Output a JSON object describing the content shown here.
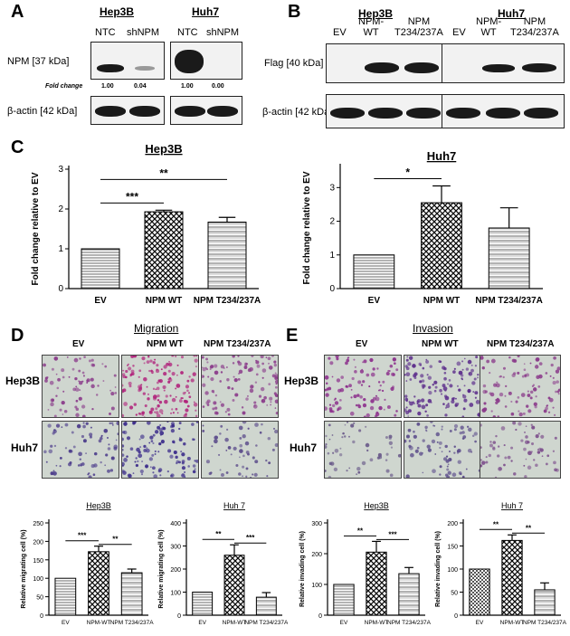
{
  "panels": {
    "a": "A",
    "b": "B",
    "c": "C",
    "d": "D",
    "e": "E"
  },
  "blotA": {
    "hep3b_title": "Hep3B",
    "huh7_title": "Huh7",
    "hep_lanes": [
      "NTC",
      "shNPM"
    ],
    "huh_lanes": [
      "NTC",
      "shNPM"
    ],
    "npm_label": "NPM [37 kDa]",
    "fold_label": "Fold change",
    "hep_folds": [
      "1.00",
      "0.04"
    ],
    "huh_folds": [
      "1.00",
      "0.00"
    ],
    "actin_label": "β-actin [42 kDa]"
  },
  "blotB": {
    "hep3b_title": "Hep3B",
    "huh7_title": "Huh7",
    "lanes": [
      "EV",
      "NPM-\nWT",
      "NPM\nT234/237A"
    ],
    "flag_label": "Flag [40 kDa]",
    "actin_label": "β-actin [42 kDa]"
  },
  "chartC": [
    {
      "title": "Hep3B",
      "ylabel": "Fold change relative to EV",
      "categories": [
        "EV",
        "NPM WT",
        "NPM T234/237A"
      ],
      "values": [
        1.0,
        1.93,
        1.67
      ],
      "errors": [
        0,
        0.04,
        0.12
      ],
      "ylim": [
        0,
        3
      ],
      "yticks": [
        "0",
        "1",
        "2",
        "3"
      ],
      "sig": [
        "***",
        "**"
      ]
    },
    {
      "title": "Huh7",
      "ylabel": "Fold change relative to EV",
      "categories": [
        "EV",
        "NPM WT",
        "NPM T234/237A"
      ],
      "values": [
        1.0,
        2.55,
        1.8
      ],
      "errors": [
        0,
        0.5,
        0.6
      ],
      "ylim": [
        0,
        3.6
      ],
      "yticks": [
        "0",
        "1",
        "2",
        "3"
      ],
      "sig": [
        "*"
      ]
    }
  ],
  "micrographs": {
    "migration_title": "Migration",
    "invasion_title": "Invasion",
    "cols": [
      "EV",
      "NPM WT",
      "NPM T234/237A"
    ],
    "rows": [
      "Hep3B",
      "Huh7"
    ]
  },
  "chartD": [
    {
      "title": "Hep3B",
      "ylabel": "Relative migrating cell (%)",
      "categories": [
        "EV",
        "NPM-WT",
        "NPM T234/237A"
      ],
      "values": [
        100,
        172,
        115
      ],
      "errors": [
        0,
        15,
        10
      ],
      "ylim": [
        0,
        250
      ],
      "yticks": [
        "0",
        "50",
        "100",
        "150",
        "200",
        "250"
      ],
      "sig": [
        "***",
        "**"
      ]
    },
    {
      "title": "Huh 7",
      "ylabel": "Relative migrating cell (%)",
      "categories": [
        "EV",
        "NPM-WT",
        "NPM T234/237A"
      ],
      "values": [
        100,
        260,
        78
      ],
      "errors": [
        0,
        45,
        20
      ],
      "ylim": [
        0,
        400
      ],
      "yticks": [
        "0",
        "100",
        "200",
        "300",
        "400"
      ],
      "sig": [
        "**",
        "***"
      ]
    },
    {
      "title": "Hep3B",
      "ylabel": "Relative invading cell (%)",
      "categories": [
        "EV",
        "NPM-WT",
        "NPM T234/237A"
      ],
      "values": [
        100,
        205,
        135
      ],
      "errors": [
        0,
        35,
        20
      ],
      "ylim": [
        0,
        300
      ],
      "yticks": [
        "0",
        "100",
        "200",
        "300"
      ],
      "sig": [
        "**",
        "***"
      ]
    },
    {
      "title": "Huh 7",
      "ylabel": "Relative invading cell (%)",
      "categories": [
        "EV",
        "NPM-WT",
        "NPM T234/237A"
      ],
      "values": [
        100,
        162,
        55
      ],
      "errors": [
        0,
        12,
        15
      ],
      "ylim": [
        0,
        200
      ],
      "yticks": [
        "0",
        "50",
        "100",
        "150",
        "200"
      ],
      "sig": [
        "**",
        "**"
      ]
    }
  ],
  "chart_data": [
    {
      "type": "bar",
      "title": "Hep3B",
      "ylabel": "Fold change relative to EV",
      "categories": [
        "EV",
        "NPM WT",
        "NPM T234/237A"
      ],
      "values": [
        1.0,
        1.93,
        1.67
      ],
      "ylim": [
        0,
        3
      ]
    },
    {
      "type": "bar",
      "title": "Huh7",
      "ylabel": "Fold change relative to EV",
      "categories": [
        "EV",
        "NPM WT",
        "NPM T234/237A"
      ],
      "values": [
        1.0,
        2.55,
        1.8
      ],
      "ylim": [
        0,
        3.6
      ]
    },
    {
      "type": "bar",
      "title": "Hep3B",
      "ylabel": "Relative migrating cell (%)",
      "categories": [
        "EV",
        "NPM-WT",
        "NPM T234/237A"
      ],
      "values": [
        100,
        172,
        115
      ],
      "ylim": [
        0,
        250
      ]
    },
    {
      "type": "bar",
      "title": "Huh 7",
      "ylabel": "Relative migrating cell (%)",
      "categories": [
        "EV",
        "NPM-WT",
        "NPM T234/237A"
      ],
      "values": [
        100,
        260,
        78
      ],
      "ylim": [
        0,
        400
      ]
    },
    {
      "type": "bar",
      "title": "Hep3B",
      "ylabel": "Relative invading cell (%)",
      "categories": [
        "EV",
        "NPM-WT",
        "NPM T234/237A"
      ],
      "values": [
        100,
        205,
        135
      ],
      "ylim": [
        0,
        300
      ]
    },
    {
      "type": "bar",
      "title": "Huh 7",
      "ylabel": "Relative invading cell (%)",
      "categories": [
        "EV",
        "NPM-WT",
        "NPM T234/237A"
      ],
      "values": [
        100,
        162,
        55
      ],
      "ylim": [
        0,
        200
      ]
    }
  ]
}
